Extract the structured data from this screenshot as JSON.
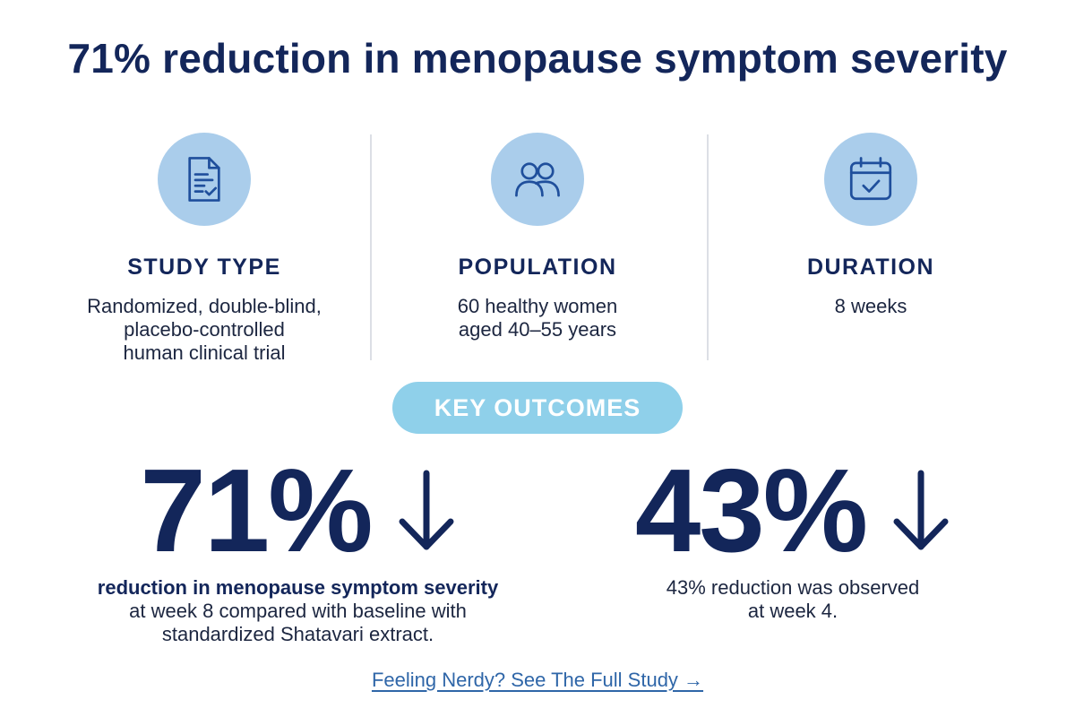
{
  "headline": "71% reduction in menopause symptom severity",
  "stats": [
    {
      "icon": "document-check-icon",
      "label": "STUDY TYPE",
      "lines": [
        "Randomized, double-blind,",
        "placebo-controlled",
        "human clinical trial"
      ]
    },
    {
      "icon": "people-icon",
      "label": "POPULATION",
      "lines": [
        "60 healthy women",
        "aged 40–55 years"
      ]
    },
    {
      "icon": "calendar-check-icon",
      "label": "DURATION",
      "lines": [
        "8 weeks"
      ]
    }
  ],
  "key_outcomes_label": "KEY OUTCOMES",
  "outcomes": [
    {
      "value": "71%",
      "lines": [
        "reduction in menopause symptom severity",
        "at week 8 compared with baseline with",
        "standardized Shatavari extract."
      ]
    },
    {
      "value": "43%",
      "lines": [
        "43% reduction was observed",
        "at week 4."
      ]
    }
  ],
  "link_text": "Feeling Nerdy? See The Full Study →",
  "colors": {
    "navy": "#13265a",
    "icon_circle": "#aacdeb",
    "icon_stroke": "#1f4f9c",
    "pill": "#8fd0ea",
    "link": "#2f66a8"
  }
}
